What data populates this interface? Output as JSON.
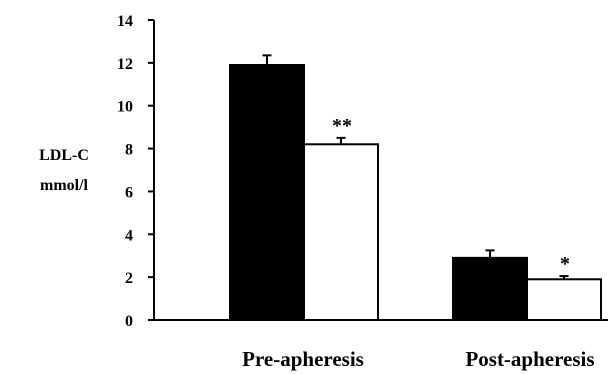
{
  "chart_data": {
    "type": "bar",
    "categories": [
      "Pre-apheresis",
      "Post-apheresis"
    ],
    "series": [
      {
        "values": [
          11.9,
          2.9
        ],
        "errors": [
          0.45,
          0.35
        ],
        "fill": "#000000",
        "annotations": [
          "",
          ""
        ]
      },
      {
        "values": [
          8.2,
          1.9
        ],
        "errors": [
          0.3,
          0.15
        ],
        "fill": "#ffffff",
        "annotations": [
          "**",
          "*"
        ]
      }
    ],
    "ylabel_lines": [
      "LDL-C",
      "mmol/l"
    ],
    "yticks": [
      0,
      2,
      4,
      6,
      8,
      10,
      12,
      14
    ],
    "ylim": [
      0,
      14
    ],
    "grid": false,
    "legend": "none"
  }
}
